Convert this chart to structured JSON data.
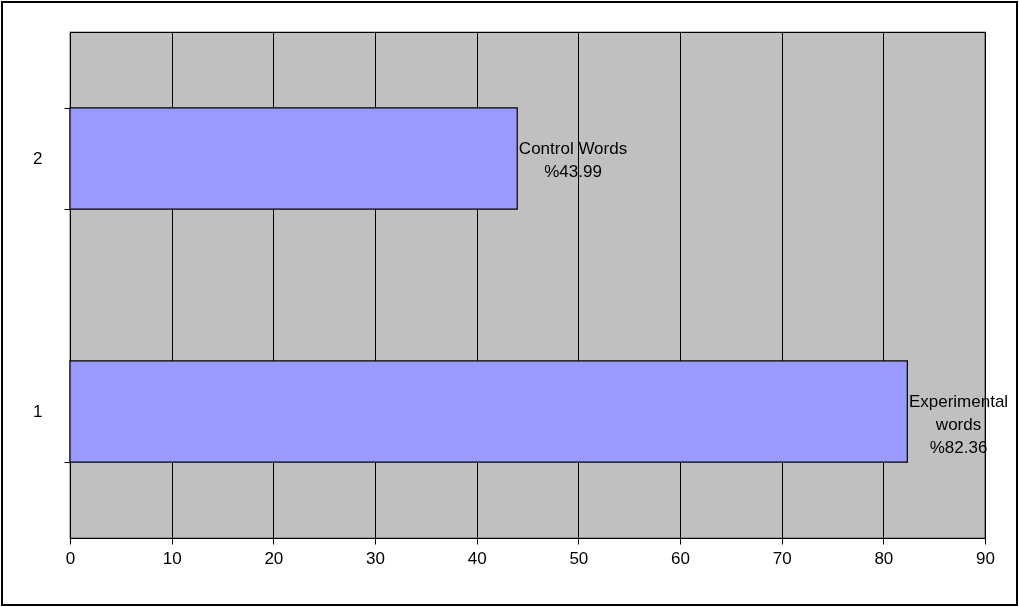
{
  "chart_data": {
    "type": "bar",
    "orientation": "horizontal",
    "categories": [
      "2",
      "1"
    ],
    "values": [
      43.99,
      82.36
    ],
    "color": "#9999ff",
    "value_labels": [
      "Control Words\n%43.99",
      "Experimental\nwords\n%82.36"
    ],
    "xlim": [
      0,
      90
    ],
    "xticks": [
      0,
      10,
      20,
      30,
      40,
      50,
      60,
      70,
      80,
      90
    ],
    "grid": "x"
  }
}
